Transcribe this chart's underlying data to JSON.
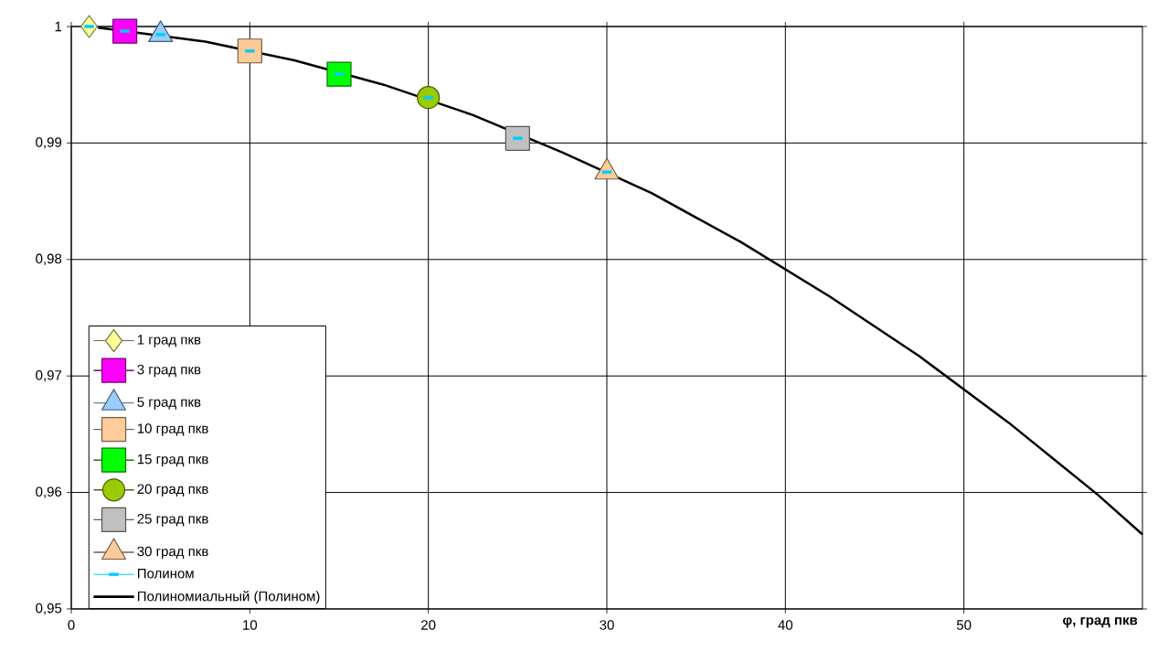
{
  "chart_data": {
    "type": "scatter",
    "xlabel": "φ, град пкв",
    "xlim": [
      0,
      60
    ],
    "xticks": [
      0,
      10,
      20,
      30,
      40,
      50
    ],
    "ylim": [
      0.95,
      1
    ],
    "yticks": [
      {
        "value": 0.95,
        "label": "0,95"
      },
      {
        "value": 0.96,
        "label": "0,96"
      },
      {
        "value": 0.97,
        "label": "0,97"
      },
      {
        "value": 0.98,
        "label": "0,98"
      },
      {
        "value": 0.99,
        "label": "0,99"
      },
      1
    ],
    "grid": true,
    "legend": "bottom left",
    "series": [
      {
        "name": "1 град пкв",
        "type": "line",
        "marker": "diamond",
        "color": "#ffff99",
        "x": [
          1
        ],
        "values": [
          1.0
        ]
      },
      {
        "name": "3 град пкв",
        "type": "line",
        "marker": "square",
        "color": "#ff00ff",
        "x": [
          3
        ],
        "values": [
          0.9996
        ]
      },
      {
        "name": "5 град пкв",
        "marker": "triangle",
        "color": "#99ccff",
        "x": [
          5
        ],
        "values": [
          0.9993
        ]
      },
      {
        "name": "10 град пкв",
        "type": "line",
        "marker": "square",
        "color": "#ffcc99",
        "x": [
          10
        ],
        "values": [
          0.9979
        ]
      },
      {
        "name": "15 град пкв",
        "type": "line",
        "marker": "square",
        "color": "#00ff00",
        "x": [
          15
        ],
        "values": [
          0.9959
        ]
      },
      {
        "name": "20 град пкв",
        "type": "line",
        "marker": "circle",
        "color": "#99cc00",
        "x": [
          20
        ],
        "values": [
          0.9939
        ]
      },
      {
        "name": "25 град пкв",
        "type": "line",
        "marker": "square",
        "color": "#c0c0c0",
        "x": [
          25
        ],
        "values": [
          0.9904
        ]
      },
      {
        "name": "30 град пкв",
        "type": "line",
        "marker": "triangle",
        "color": "#ffcc99",
        "x": [
          30
        ],
        "values": [
          0.9875
        ]
      },
      {
        "name": "Полином",
        "color": "#00ccff",
        "x": [
          1,
          3,
          5,
          10,
          15,
          20,
          25,
          30
        ],
        "values": [
          1.0,
          0.9996,
          0.9993,
          0.9979,
          0.9959,
          0.9939,
          0.9904,
          0.9875
        ]
      },
      {
        "name": "Полиномиальный (Полином)",
        "type": "line",
        "marker": "none",
        "color": "#000000",
        "x": [
          1.5,
          2.5,
          7.5,
          12.5,
          17.5,
          22.5,
          27.5,
          32.5,
          37.5,
          42.5,
          47.5,
          52.5,
          57.5,
          60
        ],
        "values": [
          0.9999,
          0.9997,
          0.9987,
          0.9971,
          0.995,
          0.9924,
          0.9892,
          0.9857,
          0.9815,
          0.9768,
          0.9717,
          0.966,
          0.9598,
          0.9564
        ]
      }
    ]
  }
}
